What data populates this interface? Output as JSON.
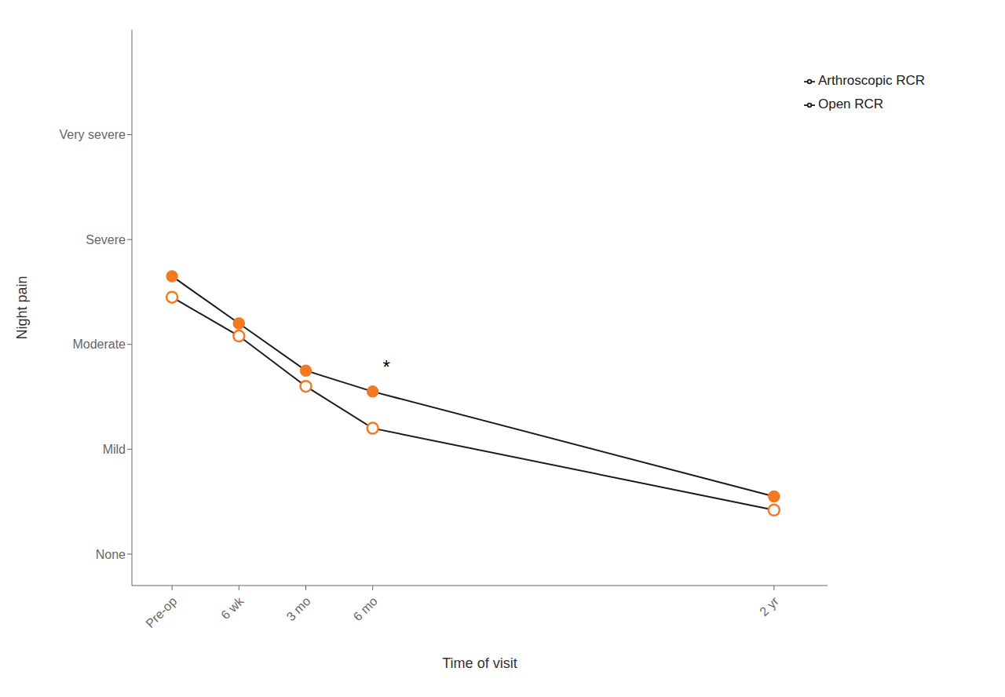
{
  "chart_data": {
    "type": "line",
    "x": [
      0,
      1,
      2,
      3,
      9
    ],
    "series": [
      {
        "name": "Open RCR",
        "color": "#1a1a1a",
        "marker": "circle",
        "values": [
          2.65,
          2.2,
          1.75,
          1.55,
          0.55
        ]
      },
      {
        "name": "Arthroscopic RCR",
        "color": "#1a1a1a",
        "marker": "open_circle",
        "values": [
          2.45,
          2.08,
          1.6,
          1.2,
          0.42
        ]
      }
    ],
    "color": "#F47920",
    "xlabel": "Time of visit",
    "ylabel": "Night pain",
    "xlim": [
      -0.6,
      9.8
    ],
    "xticks": [
      {
        "value": 0,
        "label": "Pre-op"
      },
      {
        "value": 1,
        "label": "6 wk"
      },
      {
        "value": 2,
        "label": "3 mo"
      },
      {
        "value": 3,
        "label": "6 mo"
      },
      {
        "value": 9,
        "label": "2 yr"
      }
    ],
    "ylim": [
      -0.3,
      5.0
    ],
    "yticks": [
      {
        "value": 0,
        "label": "None"
      },
      {
        "value": 1,
        "label": "Mild"
      },
      {
        "value": 2,
        "label": "Moderate"
      },
      {
        "value": 3,
        "label": "Severe"
      },
      {
        "value": 4,
        "label": "Very severe"
      }
    ],
    "annotations": [
      {
        "text": "*",
        "x": 3.15,
        "y": 1.72
      }
    ],
    "legend": "upper right",
    "grid": false
  }
}
